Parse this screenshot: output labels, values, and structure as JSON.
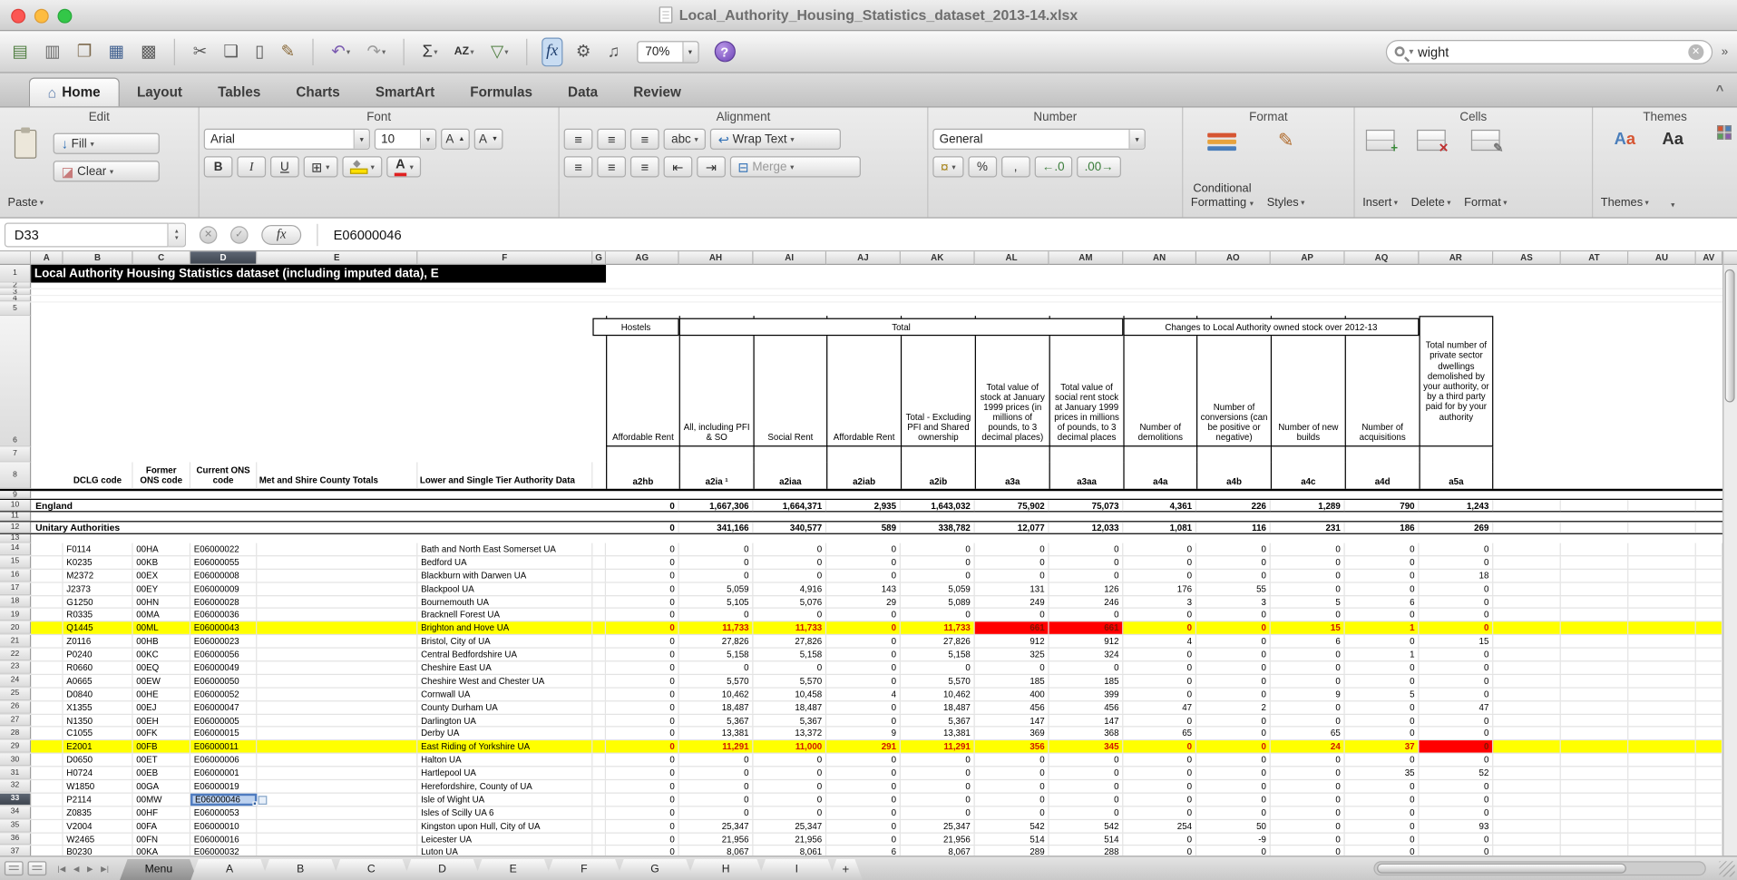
{
  "window": {
    "title": "Local_Authority_Housing_Statistics_dataset_2013-14.xlsx"
  },
  "toolbar": {
    "zoom": "70%",
    "help": "?",
    "search_value": "wight",
    "icons": [
      {
        "name": "new-workbook-icon",
        "glyph": "▤",
        "color": "#4e7d3f"
      },
      {
        "name": "workbook-gallery-icon",
        "glyph": "▥",
        "color": "#6a6a6a"
      },
      {
        "name": "open-icon",
        "glyph": "❐",
        "color": "#7d6a4e"
      },
      {
        "name": "save-icon",
        "glyph": "▦",
        "color": "#3f5f8f"
      },
      {
        "name": "print-icon",
        "glyph": "▩",
        "color": "#5a5a5a"
      },
      {
        "sep": true
      },
      {
        "name": "cut-icon",
        "glyph": "✂",
        "color": "#5a5a5a"
      },
      {
        "name": "copy-icon",
        "glyph": "❏",
        "color": "#5a5a5a"
      },
      {
        "name": "paste-icon",
        "glyph": "▯",
        "color": "#5a5a5a"
      },
      {
        "name": "format-painter-icon",
        "glyph": "✎",
        "color": "#8a6a3a"
      },
      {
        "sep": true
      },
      {
        "name": "undo-icon",
        "glyph": "↶",
        "color": "#7a5ab0",
        "caret": true
      },
      {
        "name": "redo-icon",
        "glyph": "↷",
        "color": "#9a9a9a",
        "caret": true
      },
      {
        "sep": true
      },
      {
        "name": "autosum-icon",
        "glyph": "Σ",
        "color": "#333333",
        "caret": true
      },
      {
        "name": "sort-icon",
        "glyph": "AZ",
        "color": "#333333",
        "small": true,
        "caret": true
      },
      {
        "name": "filter-icon",
        "glyph": "▽",
        "color": "#4e7d3f",
        "caret": true
      },
      {
        "sep": true
      },
      {
        "name": "formula-builder-icon",
        "glyph": "fx",
        "color": "#1f3f6f",
        "italic": true,
        "active": true
      },
      {
        "name": "toolbox-icon",
        "glyph": "⚙",
        "color": "#555555"
      },
      {
        "name": "media-browser-icon",
        "glyph": "♫",
        "color": "#555555"
      }
    ]
  },
  "ribbon_tabs": {
    "active": "Home",
    "items": [
      "Home",
      "Layout",
      "Tables",
      "Charts",
      "SmartArt",
      "Formulas",
      "Data",
      "Review"
    ]
  },
  "ribbon": {
    "edit": {
      "label": "Edit",
      "paste": "Paste",
      "fill": "Fill",
      "clear": "Clear"
    },
    "font": {
      "label": "Font",
      "font_name": "Arial",
      "font_size": "10",
      "bold": "B",
      "italic": "I",
      "underline": "U"
    },
    "alignment": {
      "label": "Alignment",
      "abc": "abc",
      "wrap": "Wrap Text",
      "merge": "Merge"
    },
    "number": {
      "label": "Number",
      "format": "General",
      "percent": "%",
      "comma": ","
    },
    "format": {
      "label": "Format",
      "conditional_1": "Conditional",
      "conditional_2": "Formatting",
      "styles": "Styles"
    },
    "cells": {
      "label": "Cells",
      "insert": "Insert",
      "delete": "Delete",
      "format": "Format"
    },
    "themes": {
      "label": "Themes",
      "themes": "Themes",
      "aa": "Aa"
    }
  },
  "glyphs": {
    "home": "⌂",
    "fill_arrow": "↓",
    "clear_eraser": "◪",
    "font_up": "▲",
    "font_down": "▼",
    "borders": "⊞",
    "align": "≡",
    "wrap_arrow": "↩",
    "merge_cells": "⊟",
    "indent_left": "⇤",
    "indent_right": "⇥",
    "currency": "¤",
    "inc_decimal": "←.0",
    "dec_decimal": ".00→",
    "insert_plus": "+",
    "delete_x": "✕",
    "format_pencil": "✎",
    "cancel": "✕",
    "enter": "✓",
    "collapse": "^"
  },
  "formula_bar": {
    "cell_ref": "D33",
    "fx_label": "fx",
    "value": "E06000046"
  },
  "grid": {
    "columns": [
      "A",
      "B",
      "C",
      "D",
      "E",
      "F",
      "G",
      "AG",
      "AH",
      "AI",
      "AJ",
      "AK",
      "AL",
      "AM",
      "AN",
      "AO",
      "AP",
      "AQ",
      "AR",
      "AS",
      "AT",
      "AU",
      "AV"
    ],
    "title": "Local Authority Housing Statistics dataset (including imputed data), E",
    "bands": {
      "hostels": "Hostels",
      "total": "Total",
      "changes": "Changes to Local Authority owned stock over 2012-13"
    },
    "descs": [
      "Affordable Rent",
      "All, including PFI & SO",
      "Social Rent",
      "Affordable Rent",
      "Total - Excluding PFI and Shared ownership",
      "Total value of stock at January 1999 prices (in millions of pounds, to 3 decimal places)",
      "Total value of social rent stock at January 1999 prices in millions of pounds, to 3 decimal places",
      "Number of demolitions",
      "Number of conversions (can be positive or negative)",
      "Number of new builds",
      "Number of acquisitions"
    ],
    "ar_desc": "Total number of private sector dwellings demolished by your authority, or by a third party paid for by your authority",
    "codes": [
      "a2hb",
      "a2ia ¹",
      "a2iaa",
      "a2iab",
      "a2ib",
      "a3a",
      "a3aa",
      "a4a",
      "a4b",
      "a4c",
      "a4d",
      "a5a"
    ],
    "left_headers": [
      "DCLG code",
      "Former ONS code",
      "Current ONS code",
      "Met and Shire County Totals",
      "Lower and Single Tier Authority Data"
    ],
    "england": {
      "row": 10,
      "label": "England",
      "values": [
        "0",
        "1,667,306",
        "1,664,371",
        "2,935",
        "1,643,032",
        "75,902",
        "75,073",
        "4,361",
        "226",
        "1,289",
        "790",
        "1,243"
      ]
    },
    "unitary": {
      "row": 12,
      "label": "Unitary Authorities",
      "values": [
        "0",
        "341,166",
        "340,577",
        "589",
        "338,782",
        "12,077",
        "12,033",
        "1,081",
        "116",
        "231",
        "186",
        "269"
      ]
    },
    "selected_cell": {
      "ref": "D33",
      "col": "D",
      "row": 33,
      "value": "E06000046"
    },
    "rows": [
      {
        "n": 14,
        "dclg": "F0114",
        "former": "00HA",
        "ons": "E06000022",
        "name": "Bath and North East Somerset UA",
        "values": [
          "0",
          "0",
          "0",
          "0",
          "0",
          "0",
          "0",
          "0",
          "0",
          "0",
          "0",
          "0"
        ]
      },
      {
        "n": 15,
        "dclg": "K0235",
        "former": "00KB",
        "ons": "E06000055",
        "name": "Bedford UA",
        "values": [
          "0",
          "0",
          "0",
          "0",
          "0",
          "0",
          "0",
          "0",
          "0",
          "0",
          "0",
          "0"
        ]
      },
      {
        "n": 16,
        "dclg": "M2372",
        "former": "00EX",
        "ons": "E06000008",
        "name": "Blackburn with Darwen UA",
        "values": [
          "0",
          "0",
          "0",
          "0",
          "0",
          "0",
          "0",
          "0",
          "0",
          "0",
          "0",
          "18"
        ]
      },
      {
        "n": 17,
        "dclg": "J2373",
        "former": "00EY",
        "ons": "E06000009",
        "name": "Blackpool UA",
        "values": [
          "0",
          "5,059",
          "4,916",
          "143",
          "5,059",
          "131",
          "126",
          "176",
          "55",
          "0",
          "0",
          "0"
        ]
      },
      {
        "n": 18,
        "dclg": "G1250",
        "former": "00HN",
        "ons": "E06000028",
        "name": "Bournemouth UA",
        "values": [
          "0",
          "5,105",
          "5,076",
          "29",
          "5,089",
          "249",
          "246",
          "3",
          "3",
          "5",
          "6",
          "0"
        ]
      },
      {
        "n": 19,
        "dclg": "R0335",
        "former": "00MA",
        "ons": "E06000036",
        "name": "Bracknell Forest UA",
        "values": [
          "0",
          "0",
          "0",
          "0",
          "0",
          "0",
          "0",
          "0",
          "0",
          "0",
          "0",
          "0"
        ]
      },
      {
        "n": 20,
        "dclg": "Q1445",
        "former": "00ML",
        "ons": "E06000043",
        "name": "Brighton and Hove UA",
        "highlight": "yellow",
        "red_bg": [
          5,
          6
        ],
        "values": [
          "0",
          "11,733",
          "11,733",
          "0",
          "11,733",
          "661",
          "661",
          "0",
          "0",
          "15",
          "1",
          "0"
        ]
      },
      {
        "n": 21,
        "dclg": "Z0116",
        "former": "00HB",
        "ons": "E06000023",
        "name": "Bristol, City of UA",
        "values": [
          "0",
          "27,826",
          "27,826",
          "0",
          "27,826",
          "912",
          "912",
          "4",
          "0",
          "6",
          "0",
          "15"
        ]
      },
      {
        "n": 22,
        "dclg": "P0240",
        "former": "00KC",
        "ons": "E06000056",
        "name": "Central Bedfordshire UA",
        "values": [
          "0",
          "5,158",
          "5,158",
          "0",
          "5,158",
          "325",
          "324",
          "0",
          "0",
          "0",
          "1",
          "0"
        ]
      },
      {
        "n": 23,
        "dclg": "R0660",
        "former": "00EQ",
        "ons": "E06000049",
        "name": "Cheshire East UA",
        "values": [
          "0",
          "0",
          "0",
          "0",
          "0",
          "0",
          "0",
          "0",
          "0",
          "0",
          "0",
          "0"
        ]
      },
      {
        "n": 24,
        "dclg": "A0665",
        "former": "00EW",
        "ons": "E06000050",
        "name": "Cheshire West and Chester UA",
        "values": [
          "0",
          "5,570",
          "5,570",
          "0",
          "5,570",
          "185",
          "185",
          "0",
          "0",
          "0",
          "0",
          "0"
        ]
      },
      {
        "n": 25,
        "dclg": "D0840",
        "former": "00HE",
        "ons": "E06000052",
        "name": "Cornwall UA",
        "values": [
          "0",
          "10,462",
          "10,458",
          "4",
          "10,462",
          "400",
          "399",
          "0",
          "0",
          "9",
          "5",
          "0"
        ]
      },
      {
        "n": 26,
        "dclg": "X1355",
        "former": "00EJ",
        "ons": "E06000047",
        "name": "County Durham UA",
        "values": [
          "0",
          "18,487",
          "18,487",
          "0",
          "18,487",
          "456",
          "456",
          "47",
          "2",
          "0",
          "0",
          "47"
        ]
      },
      {
        "n": 27,
        "dclg": "N1350",
        "former": "00EH",
        "ons": "E06000005",
        "name": "Darlington UA",
        "values": [
          "0",
          "5,367",
          "5,367",
          "0",
          "5,367",
          "147",
          "147",
          "0",
          "0",
          "0",
          "0",
          "0"
        ]
      },
      {
        "n": 28,
        "dclg": "C1055",
        "former": "00FK",
        "ons": "E06000015",
        "name": "Derby UA",
        "values": [
          "0",
          "13,381",
          "13,372",
          "9",
          "13,381",
          "369",
          "368",
          "65",
          "0",
          "65",
          "0",
          "0"
        ]
      },
      {
        "n": 29,
        "dclg": "E2001",
        "former": "00FB",
        "ons": "E06000011",
        "name": "East Riding of Yorkshire UA",
        "highlight": "yellow",
        "red_bg": [
          11
        ],
        "values": [
          "0",
          "11,291",
          "11,000",
          "291",
          "11,291",
          "356",
          "345",
          "0",
          "0",
          "24",
          "37",
          "0"
        ]
      },
      {
        "n": 30,
        "dclg": "D0650",
        "former": "00ET",
        "ons": "E06000006",
        "name": "Halton UA",
        "values": [
          "0",
          "0",
          "0",
          "0",
          "0",
          "0",
          "0",
          "0",
          "0",
          "0",
          "0",
          "0"
        ]
      },
      {
        "n": 31,
        "dclg": "H0724",
        "former": "00EB",
        "ons": "E06000001",
        "name": "Hartlepool UA",
        "values": [
          "0",
          "0",
          "0",
          "0",
          "0",
          "0",
          "0",
          "0",
          "0",
          "0",
          "35",
          "52"
        ]
      },
      {
        "n": 32,
        "dclg": "W1850",
        "former": "00GA",
        "ons": "E06000019",
        "name": "Herefordshire, County of UA",
        "values": [
          "0",
          "0",
          "0",
          "0",
          "0",
          "0",
          "0",
          "0",
          "0",
          "0",
          "0",
          "0"
        ]
      },
      {
        "n": 33,
        "dclg": "P2114",
        "former": "00MW",
        "ons": "E06000046",
        "name": "Isle of Wight UA",
        "selected": true,
        "values": [
          "0",
          "0",
          "0",
          "0",
          "0",
          "0",
          "0",
          "0",
          "0",
          "0",
          "0",
          "0"
        ]
      },
      {
        "n": 34,
        "dclg": "Z0835",
        "former": "00HF",
        "ons": "E06000053",
        "name": "Isles of Scilly UA 6",
        "values": [
          "0",
          "0",
          "0",
          "0",
          "0",
          "0",
          "0",
          "0",
          "0",
          "0",
          "0",
          "0"
        ]
      },
      {
        "n": 35,
        "dclg": "V2004",
        "former": "00FA",
        "ons": "E06000010",
        "name": "Kingston upon Hull, City of UA",
        "values": [
          "0",
          "25,347",
          "25,347",
          "0",
          "25,347",
          "542",
          "542",
          "254",
          "50",
          "0",
          "0",
          "93"
        ]
      },
      {
        "n": 36,
        "dclg": "W2465",
        "former": "00FN",
        "ons": "E06000016",
        "name": "Leicester UA",
        "values": [
          "0",
          "21,956",
          "21,956",
          "0",
          "21,956",
          "514",
          "514",
          "0",
          "-9",
          "0",
          "0",
          "0"
        ]
      },
      {
        "n": 37,
        "dclg": "B0230",
        "former": "00KA",
        "ons": "E06000032",
        "name": "Luton UA",
        "values": [
          "0",
          "8,067",
          "8,061",
          "6",
          "8,067",
          "289",
          "288",
          "0",
          "0",
          "0",
          "0",
          "0"
        ]
      }
    ]
  },
  "sheet_tabs": {
    "nav": [
      "|◀",
      "◀",
      "▶",
      "▶|"
    ],
    "items": [
      "Menu",
      "A",
      "B",
      "C",
      "D",
      "E",
      "F",
      "G",
      "H",
      "I"
    ],
    "dark_tab": "Menu",
    "add_label": "+"
  },
  "colors": {
    "highlight_yellow": "#ffff00",
    "alert_red": "#ff0000",
    "red_text": "#d11500",
    "selection_blue": "#4f7cc0",
    "help_purple": "#7a4fc0"
  }
}
